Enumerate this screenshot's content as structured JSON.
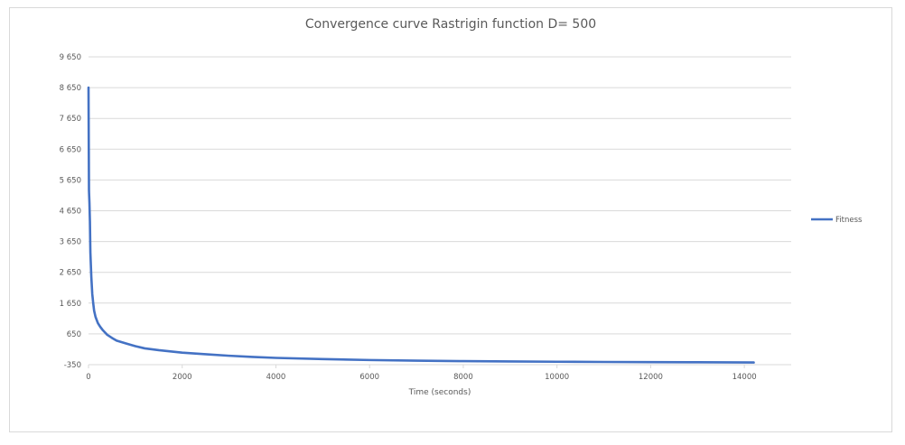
{
  "chart_data": {
    "type": "line",
    "title": "Convergence curve Rastrigin function D= 500",
    "xlabel": "Time (seconds)",
    "ylabel": "",
    "xlim": [
      0,
      15000
    ],
    "ylim": [
      -350,
      9650
    ],
    "x_ticks": [
      0,
      2000,
      4000,
      6000,
      8000,
      10000,
      12000,
      14000
    ],
    "y_ticks": [
      -350,
      650,
      1650,
      2650,
      3650,
      4650,
      5650,
      6650,
      7650,
      8650,
      9650
    ],
    "x_tick_labels": [
      "0",
      "2000",
      "4000",
      "6000",
      "8000",
      "10000",
      "12000",
      "14000"
    ],
    "y_tick_labels": [
      "-350",
      "650",
      "1 650",
      "2 650",
      "3 650",
      "4 650",
      "5 650",
      "6 650",
      "7 650",
      "8 650",
      "9 650"
    ],
    "grid": "horizontal",
    "legend_position": "right",
    "series": [
      {
        "name": "Fitness",
        "color": "#4472C4",
        "x": [
          0,
          10,
          20,
          30,
          40,
          50,
          60,
          80,
          100,
          120,
          150,
          200,
          250,
          300,
          400,
          500,
          600,
          800,
          1000,
          1200,
          1500,
          2000,
          2500,
          3000,
          3500,
          4000,
          5000,
          6000,
          7000,
          8000,
          9000,
          10000,
          11000,
          12000,
          13000,
          14200
        ],
        "y": [
          8650,
          5300,
          4900,
          4300,
          3300,
          2900,
          2500,
          1950,
          1650,
          1400,
          1200,
          1000,
          880,
          780,
          620,
          520,
          430,
          340,
          250,
          180,
          120,
          40,
          -10,
          -60,
          -100,
          -130,
          -170,
          -200,
          -220,
          -235,
          -245,
          -255,
          -262,
          -268,
          -272,
          -280
        ]
      }
    ]
  }
}
